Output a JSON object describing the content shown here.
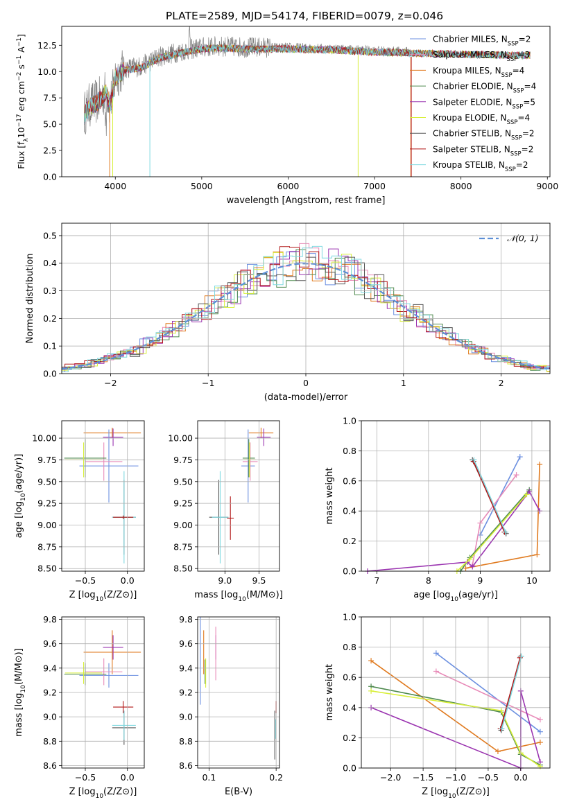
{
  "figure_title": "PLATE=2589, MJD=54174, FIBERID=0079, z=0.046",
  "palette": {
    "Chabrier MILES": "#6b8fe0",
    "Salpeter MILES": "#e88ab8",
    "Kroupa MILES": "#e07a1f",
    "Chabrier ELODIE": "#4f8a4f",
    "Salpeter ELODIE": "#9a33b0",
    "Kroupa ELODIE": "#d8ef3a",
    "Chabrier STELIB": "#555555",
    "Salpeter STELIB": "#b01515",
    "Kroupa STELIB": "#7fd9e0",
    "data": "#808080",
    "normal": "#5b8ed6"
  },
  "chart_data": [
    {
      "id": "spectrum",
      "type": "line",
      "title": "PLATE=2589, MJD=54174, FIBERID=0079, z=0.046",
      "xlabel": "wavelength [Angstrom, rest frame]",
      "ylabel": "Flux [f_λ 10^-17 erg cm^-2 s^-1 A^-1]",
      "xlim": [
        3380,
        9030
      ],
      "ylim": [
        0,
        14.3
      ],
      "xticks": [
        4000,
        5000,
        6000,
        7000,
        8000,
        9000
      ],
      "yticks": [
        0.0,
        2.5,
        5.0,
        7.5,
        10.0,
        12.5
      ],
      "legend_placement": "right",
      "legend": [
        {
          "model": "Chabrier MILES",
          "label": "Chabrier MILES, N",
          "sub": "SSP",
          "eq": "=2"
        },
        {
          "model": "Salpeter MILES",
          "label": "Salpeter MILES, N",
          "sub": "SSP",
          "eq": "=3"
        },
        {
          "model": "Kroupa MILES",
          "label": "Kroupa MILES, N",
          "sub": "SSP",
          "eq": "=4"
        },
        {
          "model": "Chabrier ELODIE",
          "label": "Chabrier ELODIE, N",
          "sub": "SSP",
          "eq": "=4"
        },
        {
          "model": "Salpeter ELODIE",
          "label": "Salpeter ELODIE, N",
          "sub": "SSP",
          "eq": "=5"
        },
        {
          "model": "Kroupa ELODIE",
          "label": "Kroupa ELODIE, N",
          "sub": "SSP",
          "eq": "=4"
        },
        {
          "model": "Chabrier STELIB",
          "label": "Chabrier STELIB, N",
          "sub": "SSP",
          "eq": "=2"
        },
        {
          "model": "Salpeter STELIB",
          "label": "Salpeter STELIB, N",
          "sub": "SSP",
          "eq": "=2"
        },
        {
          "model": "Kroupa STELIB",
          "label": "Kroupa STELIB, N",
          "sub": "SSP",
          "eq": "=2"
        }
      ],
      "continuum": [
        [
          3640,
          6.0
        ],
        [
          3700,
          6.8
        ],
        [
          3800,
          7.2
        ],
        [
          3900,
          8.2
        ],
        [
          3930,
          7.0
        ],
        [
          3960,
          7.5
        ],
        [
          4000,
          9.5
        ],
        [
          4100,
          10.3
        ],
        [
          4300,
          10.5
        ],
        [
          4500,
          11.4
        ],
        [
          4800,
          12.0
        ],
        [
          5000,
          12.3
        ],
        [
          5200,
          12.4
        ],
        [
          5500,
          12.3
        ],
        [
          6000,
          12.3
        ],
        [
          6500,
          12.2
        ],
        [
          7000,
          12.0
        ],
        [
          7420,
          11.9
        ],
        [
          8000,
          11.8
        ],
        [
          8600,
          11.7
        ],
        [
          8800,
          11.7
        ]
      ],
      "data_range": [
        3640,
        7400
      ],
      "model_range": [
        3640,
        8800
      ],
      "dips": [
        {
          "x": 3935,
          "y": 0.0,
          "model": "Kroupa MILES"
        },
        {
          "x": 3970,
          "y": 0.0,
          "model": "Kroupa ELODIE"
        },
        {
          "x": 4400,
          "y": 0.0,
          "model": "Kroupa STELIB"
        },
        {
          "x": 6810,
          "y": 0.0,
          "model": "Kroupa ELODIE"
        },
        {
          "x": 7420,
          "y": 0.0,
          "model": "Kroupa MILES"
        },
        {
          "x": 7425,
          "y": 0.0,
          "model": "Salpeter STELIB"
        }
      ]
    },
    {
      "id": "residuals",
      "type": "line",
      "xlabel": "(data-model)/error",
      "ylabel": "Normed distribution",
      "xlim": [
        -2.5,
        2.5
      ],
      "ylim": [
        0,
        0.545
      ],
      "xticks": [
        -2,
        -1,
        0,
        1,
        2
      ],
      "yticks": [
        0.0,
        0.1,
        0.2,
        0.3,
        0.4,
        0.5
      ],
      "legend_placement": "top-right",
      "legend_label": "𝒩(0, 1)",
      "bin_width": 0.1,
      "max_value": 0.5
    },
    {
      "id": "age-vs-Z",
      "type": "scatter",
      "xlabel": "Z [log10(Z/Z⊙)]",
      "ylabel": "age [log10(age/yr)]",
      "xlim": [
        -0.78,
        0.2
      ],
      "ylim": [
        8.47,
        10.2
      ],
      "xticks": [
        -0.5,
        0.0
      ],
      "yticks": [
        8.5,
        8.75,
        9.0,
        9.25,
        9.5,
        9.75,
        10.0
      ],
      "points": [
        {
          "model": "Kroupa MILES",
          "x": -0.18,
          "xe": 0.34,
          "y": 10.06,
          "ye": 0.06
        },
        {
          "model": "Salpeter ELODIE",
          "x": -0.17,
          "xe": 0.12,
          "y": 10.01,
          "ye": 0.1
        },
        {
          "model": "Chabrier MILES",
          "x": -0.22,
          "xe": 0.35,
          "y": 9.68,
          "ye": 0.42
        },
        {
          "model": "Salpeter MILES",
          "x": -0.28,
          "xe": 0.22,
          "y": 9.73,
          "ye": 0.22
        },
        {
          "model": "Chabrier ELODIE",
          "x": -0.5,
          "xe": 0.25,
          "y": 9.77,
          "ye": 0.22
        },
        {
          "model": "Kroupa ELODIE",
          "x": -0.52,
          "xe": 0.22,
          "y": 9.75,
          "ye": 0.2
        },
        {
          "model": "Chabrier STELIB",
          "x": -0.04,
          "xe": 0.14,
          "y": 9.09,
          "ye": 0.43
        },
        {
          "model": "Kroupa STELIB",
          "x": -0.04,
          "xe": 0.14,
          "y": 9.09,
          "ye": 0.53
        },
        {
          "model": "Salpeter STELIB",
          "x": -0.05,
          "xe": 0.12,
          "y": 9.09,
          "ye": 0.02
        }
      ]
    },
    {
      "id": "age-vs-mass",
      "type": "scatter",
      "xlabel": "mass [log10(M/M⊙)]",
      "xlim": [
        8.6,
        9.8
      ],
      "ylim": [
        8.47,
        10.2
      ],
      "xticks": [
        9.0,
        9.5
      ],
      "yticks": [
        8.5,
        8.75,
        9.0,
        9.25,
        9.5,
        9.75,
        10.0
      ],
      "points": [
        {
          "model": "Kroupa MILES",
          "x": 9.53,
          "xe": 0.18,
          "y": 10.06,
          "ye": 0.06
        },
        {
          "model": "Salpeter ELODIE",
          "x": 9.57,
          "xe": 0.1,
          "y": 10.01,
          "ye": 0.1
        },
        {
          "model": "Chabrier MILES",
          "x": 9.34,
          "xe": 0.1,
          "y": 9.68,
          "ye": 0.42
        },
        {
          "model": "Salpeter MILES",
          "x": 9.37,
          "xe": 0.11,
          "y": 9.73,
          "ye": 0.22
        },
        {
          "model": "Chabrier ELODIE",
          "x": 9.35,
          "xe": 0.09,
          "y": 9.77,
          "ye": 0.22
        },
        {
          "model": "Kroupa ELODIE",
          "x": 9.36,
          "xe": 0.09,
          "y": 9.75,
          "ye": 0.2
        },
        {
          "model": "Chabrier STELIB",
          "x": 8.91,
          "xe": 0.14,
          "y": 9.09,
          "ye": 0.43
        },
        {
          "model": "Kroupa STELIB",
          "x": 8.93,
          "xe": 0.12,
          "y": 9.09,
          "ye": 0.53
        },
        {
          "model": "Salpeter STELIB",
          "x": 9.08,
          "xe": 0.05,
          "y": 9.08,
          "ye": 0.25
        }
      ]
    },
    {
      "id": "weight-vs-age",
      "type": "line",
      "xlabel": "age [log10(age/yr)]",
      "ylabel": "mass weight",
      "xlim": [
        6.7,
        10.35
      ],
      "ylim": [
        0,
        1.0
      ],
      "xticks": [
        7,
        8,
        9,
        10
      ],
      "yticks": [
        0.0,
        0.2,
        0.4,
        0.6,
        0.8,
        1.0
      ],
      "series": [
        {
          "model": "Chabrier MILES",
          "points": [
            [
              9.0,
              0.24
            ],
            [
              9.77,
              0.76
            ]
          ]
        },
        {
          "model": "Salpeter MILES",
          "points": [
            [
              8.85,
              0.04
            ],
            [
              9.0,
              0.32
            ],
            [
              9.7,
              0.64
            ]
          ]
        },
        {
          "model": "Kroupa MILES",
          "points": [
            [
              8.72,
              0.02
            ],
            [
              10.1,
              0.11
            ],
            [
              10.15,
              0.71
            ]
          ]
        },
        {
          "model": "Chabrier ELODIE",
          "points": [
            [
              8.62,
              0.0
            ],
            [
              8.8,
              0.09
            ],
            [
              9.95,
              0.54
            ]
          ]
        },
        {
          "model": "Salpeter ELODIE",
          "points": [
            [
              6.82,
              0.0
            ],
            [
              8.75,
              0.06
            ],
            [
              8.85,
              0.03
            ],
            [
              9.95,
              0.53
            ],
            [
              10.15,
              0.4
            ]
          ]
        },
        {
          "model": "Kroupa ELODIE",
          "points": [
            [
              8.55,
              0.0
            ],
            [
              8.8,
              0.08
            ],
            [
              9.9,
              0.51
            ]
          ]
        },
        {
          "model": "Chabrier STELIB",
          "points": [
            [
              8.85,
              0.74
            ],
            [
              9.5,
              0.25
            ]
          ]
        },
        {
          "model": "Salpeter STELIB",
          "points": [
            [
              8.87,
              0.73
            ],
            [
              9.47,
              0.26
            ]
          ]
        },
        {
          "model": "Kroupa STELIB",
          "points": [
            [
              8.88,
              0.74
            ],
            [
              9.49,
              0.26
            ]
          ]
        }
      ]
    },
    {
      "id": "mass-vs-Z",
      "type": "scatter",
      "xlabel": "Z [log10(Z/Z⊙)]",
      "ylabel": "mass [log10(M/M⊙)]",
      "xlim": [
        -0.78,
        0.2
      ],
      "ylim": [
        8.58,
        9.82
      ],
      "xticks": [
        -0.5,
        0.0
      ],
      "yticks": [
        8.6,
        8.8,
        9.0,
        9.2,
        9.4,
        9.6,
        9.8
      ],
      "points": [
        {
          "model": "Kroupa MILES",
          "x": -0.18,
          "xe": 0.34,
          "y": 9.53,
          "ye": 0.18
        },
        {
          "model": "Salpeter ELODIE",
          "x": -0.17,
          "xe": 0.12,
          "y": 9.57,
          "ye": 0.1
        },
        {
          "model": "Chabrier MILES",
          "x": -0.22,
          "xe": 0.35,
          "y": 9.34,
          "ye": 0.1
        },
        {
          "model": "Salpeter MILES",
          "x": -0.28,
          "xe": 0.22,
          "y": 9.37,
          "ye": 0.11
        },
        {
          "model": "Chabrier ELODIE",
          "x": -0.5,
          "xe": 0.25,
          "y": 9.35,
          "ye": 0.09
        },
        {
          "model": "Kroupa ELODIE",
          "x": -0.52,
          "xe": 0.22,
          "y": 9.36,
          "ye": 0.09
        },
        {
          "model": "Chabrier STELIB",
          "x": -0.04,
          "xe": 0.14,
          "y": 8.91,
          "ye": 0.14
        },
        {
          "model": "Kroupa STELIB",
          "x": -0.04,
          "xe": 0.14,
          "y": 8.93,
          "ye": 0.12
        },
        {
          "model": "Salpeter STELIB",
          "x": -0.05,
          "xe": 0.12,
          "y": 9.08,
          "ye": 0.05
        }
      ]
    },
    {
      "id": "mass-vs-EBV",
      "type": "scatter",
      "xlabel": "E(B-V)",
      "xlim": [
        0.083,
        0.205
      ],
      "ylim": [
        8.58,
        9.82
      ],
      "xticks": [
        0.1,
        0.2
      ],
      "yticks": [
        8.6,
        8.8,
        9.0,
        9.2,
        9.4,
        9.6,
        9.8
      ],
      "points": [
        {
          "model": "Kroupa MILES",
          "x": 0.092,
          "ye": 0.18,
          "y": 9.53
        },
        {
          "model": "Salpeter ELODIE",
          "x": 0.11,
          "ye": 0.1,
          "y": 9.57
        },
        {
          "model": "Chabrier MILES",
          "x": 0.087,
          "ye": 0.4,
          "y": 9.5
        },
        {
          "model": "Salpeter MILES",
          "x": 0.11,
          "ye": 0.22,
          "y": 9.52
        },
        {
          "model": "Chabrier ELODIE",
          "x": 0.094,
          "ye": 0.1,
          "y": 9.37
        },
        {
          "model": "Kroupa ELODIE",
          "x": 0.095,
          "ye": 0.12,
          "y": 9.36
        },
        {
          "model": "Chabrier STELIB",
          "x": 0.198,
          "ye": 0.2,
          "y": 8.85
        },
        {
          "model": "Kroupa STELIB",
          "x": 0.199,
          "ye": 0.08,
          "y": 8.9
        },
        {
          "model": "Salpeter STELIB",
          "x": 0.2,
          "ye": 0.05,
          "y": 9.08
        }
      ]
    },
    {
      "id": "weight-vs-Z",
      "type": "line",
      "xlabel": "Z [log10(Z/Z⊙)]",
      "ylabel": "mass weight",
      "xlim": [
        -2.45,
        0.45
      ],
      "ylim": [
        0,
        1.0
      ],
      "xticks": [
        -2.0,
        -1.5,
        -1.0,
        -0.5,
        0.0
      ],
      "yticks": [
        0.0,
        0.2,
        0.4,
        0.6,
        0.8,
        1.0
      ],
      "series": [
        {
          "model": "Chabrier MILES",
          "points": [
            [
              -1.3,
              0.76
            ],
            [
              0.3,
              0.24
            ]
          ]
        },
        {
          "model": "Salpeter MILES",
          "points": [
            [
              -1.3,
              0.64
            ],
            [
              0.3,
              0.32
            ]
          ]
        },
        {
          "model": "Kroupa MILES",
          "points": [
            [
              -2.3,
              0.71
            ],
            [
              -0.35,
              0.11
            ],
            [
              0.3,
              0.17
            ]
          ]
        },
        {
          "model": "Chabrier ELODIE",
          "points": [
            [
              -2.3,
              0.54
            ],
            [
              -0.3,
              0.37
            ],
            [
              0.0,
              0.09
            ],
            [
              0.3,
              0.02
            ]
          ]
        },
        {
          "model": "Salpeter ELODIE",
          "points": [
            [
              -2.3,
              0.4
            ],
            [
              0.0,
              0.0
            ],
            [
              0.0,
              0.51
            ],
            [
              0.3,
              0.04
            ]
          ]
        },
        {
          "model": "Kroupa ELODIE",
          "points": [
            [
              -2.3,
              0.51
            ],
            [
              -0.3,
              0.38
            ],
            [
              0.0,
              0.1
            ],
            [
              0.3,
              0.01
            ]
          ]
        },
        {
          "model": "Chabrier STELIB",
          "points": [
            [
              -0.3,
              0.25
            ],
            [
              0.0,
              0.74
            ]
          ]
        },
        {
          "model": "Salpeter STELIB",
          "points": [
            [
              -0.31,
              0.26
            ],
            [
              -0.01,
              0.73
            ]
          ]
        },
        {
          "model": "Kroupa STELIB",
          "points": [
            [
              -0.29,
              0.26
            ],
            [
              0.01,
              0.74
            ]
          ]
        }
      ]
    }
  ]
}
